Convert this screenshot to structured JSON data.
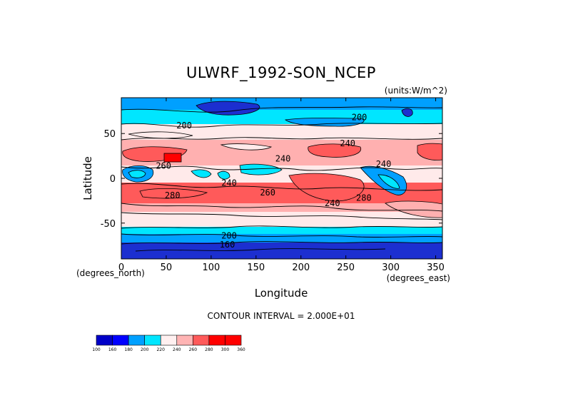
{
  "chart_data": {
    "type": "contour",
    "title": "ULWRF_1992-SON_NCEP",
    "units": "(units:W/m^2)",
    "xlabel": "Longitude",
    "ylabel": "Latitude",
    "x_unit_note": "(degrees_east)",
    "y_unit_note": "(degrees_north)",
    "xlim": [
      0,
      357.5
    ],
    "ylim": [
      -90,
      90
    ],
    "xticks": [
      0,
      50,
      100,
      150,
      200,
      250,
      300,
      350
    ],
    "yticks": [
      -50,
      0,
      50
    ],
    "contour_interval_text": "CONTOUR INTERVAL = 2.000E+01",
    "colorbar": {
      "levels": [
        100,
        160,
        180,
        200,
        220,
        240,
        260,
        280,
        300,
        360
      ],
      "colors": [
        "#0000c8",
        "#0000ff",
        "#00a0ff",
        "#00e6ff",
        "#fff0f0",
        "#ffb4b4",
        "#ff5a5a",
        "#ff0000",
        "#ff0000"
      ]
    },
    "band_colors": {
      "polar_dark": "#1c2fd0",
      "cold": "#00a0ff",
      "cool": "#00e6ff",
      "mild": "#ffeaea",
      "warm": "#ffb0b0",
      "hot": "#ff5a5a",
      "max": "#ff0000"
    },
    "contour_labels": [
      {
        "text": "200",
        "lon": 265,
        "lat": 68
      },
      {
        "text": "200",
        "lon": 70,
        "lat": 59
      },
      {
        "text": "240",
        "lon": 252,
        "lat": 39
      },
      {
        "text": "240",
        "lon": 180,
        "lat": 22
      },
      {
        "text": "240",
        "lon": 292,
        "lat": 16
      },
      {
        "text": "260",
        "lon": 47,
        "lat": 14
      },
      {
        "text": "240",
        "lon": 120,
        "lat": -5
      },
      {
        "text": "260",
        "lon": 163,
        "lat": -16
      },
      {
        "text": "280",
        "lon": 57,
        "lat": -19
      },
      {
        "text": "280",
        "lon": 270,
        "lat": -22
      },
      {
        "text": "240",
        "lon": 235,
        "lat": -28
      },
      {
        "text": "200",
        "lon": 120,
        "lat": -64
      },
      {
        "text": "160",
        "lon": 118,
        "lat": -74
      }
    ]
  }
}
